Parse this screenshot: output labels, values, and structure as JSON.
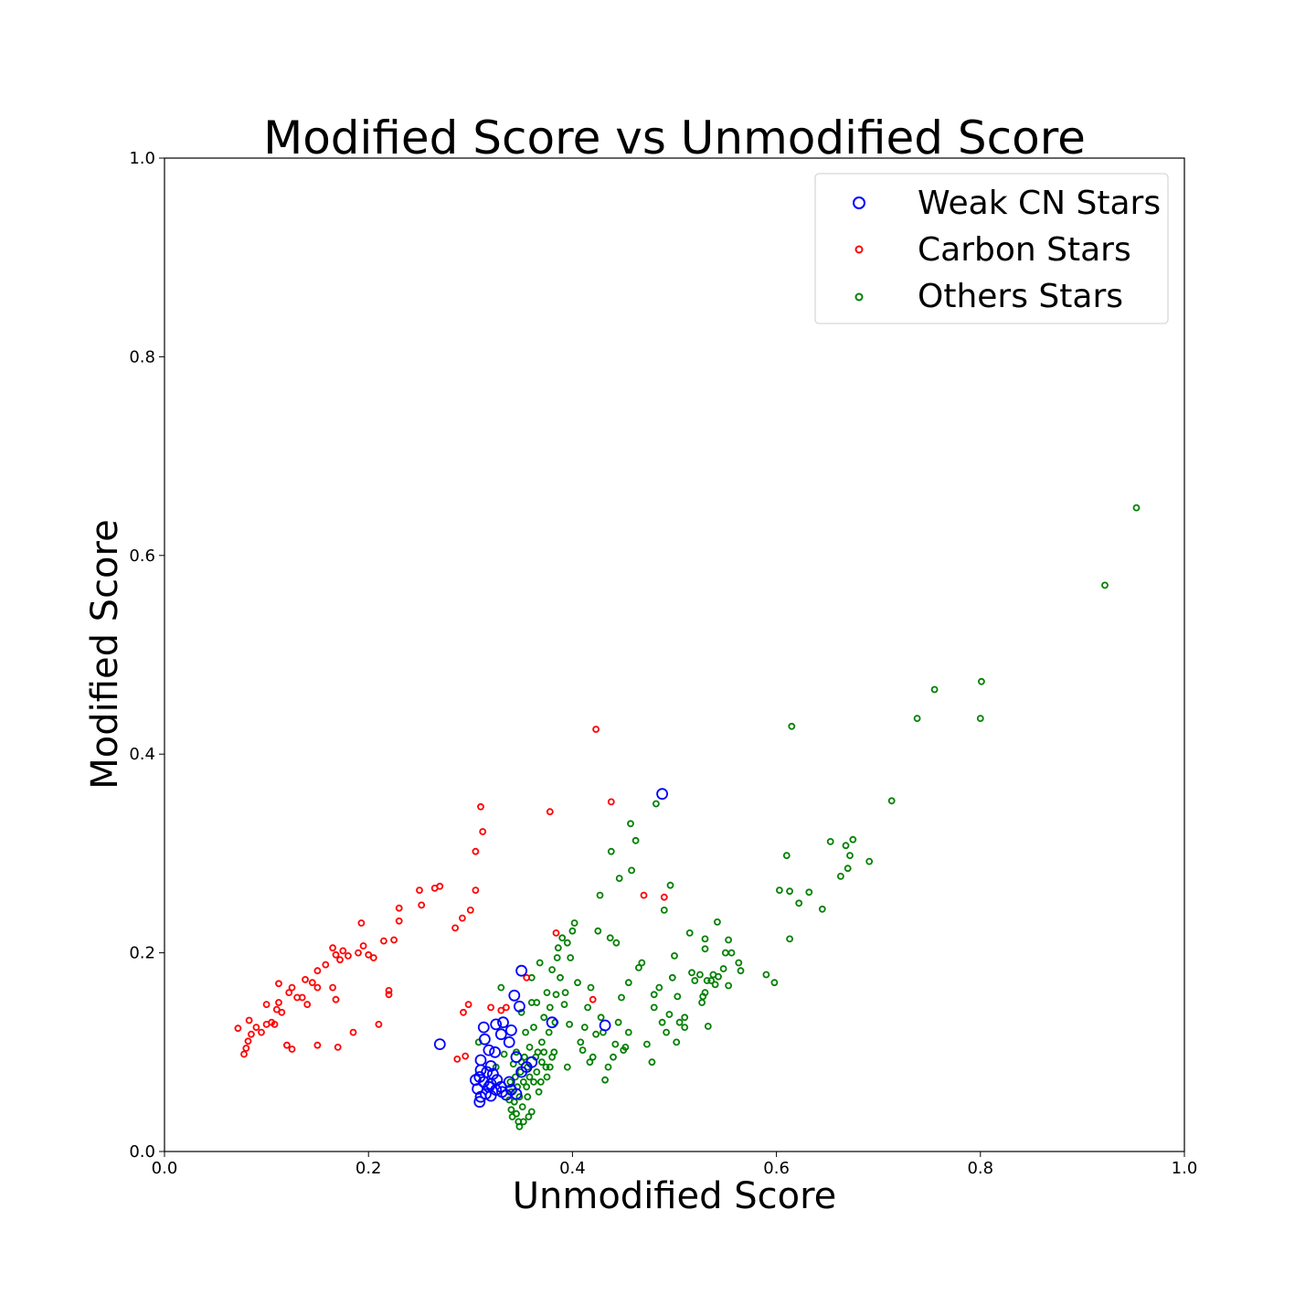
{
  "chart_data": {
    "type": "scatter",
    "title": "Modified Score vs Unmodified Score",
    "xlabel": "Unmodified Score",
    "ylabel": "Modified Score",
    "xlim": [
      0.0,
      1.0
    ],
    "ylim": [
      0.0,
      1.0
    ],
    "xticks": [
      "0.0",
      "0.2",
      "0.4",
      "0.6",
      "0.8",
      "1.0"
    ],
    "yticks": [
      "0.0",
      "0.2",
      "0.4",
      "0.6",
      "0.8",
      "1.0"
    ],
    "grid": false,
    "legend_position": "top-right",
    "series": [
      {
        "name": "Weak CN Stars",
        "color": "#0000ff",
        "marker": "open-circle-large",
        "points": [
          [
            0.27,
            0.108
          ],
          [
            0.35,
            0.182
          ],
          [
            0.343,
            0.157
          ],
          [
            0.348,
            0.146
          ],
          [
            0.332,
            0.13
          ],
          [
            0.325,
            0.128
          ],
          [
            0.313,
            0.125
          ],
          [
            0.314,
            0.113
          ],
          [
            0.33,
            0.118
          ],
          [
            0.34,
            0.122
          ],
          [
            0.338,
            0.11
          ],
          [
            0.318,
            0.102
          ],
          [
            0.324,
            0.1
          ],
          [
            0.345,
            0.095
          ],
          [
            0.31,
            0.092
          ],
          [
            0.32,
            0.086
          ],
          [
            0.31,
            0.082
          ],
          [
            0.316,
            0.08
          ],
          [
            0.322,
            0.078
          ],
          [
            0.309,
            0.075
          ],
          [
            0.305,
            0.072
          ],
          [
            0.313,
            0.07
          ],
          [
            0.32,
            0.068
          ],
          [
            0.318,
            0.065
          ],
          [
            0.307,
            0.063
          ],
          [
            0.325,
            0.062
          ],
          [
            0.331,
            0.06
          ],
          [
            0.315,
            0.058
          ],
          [
            0.32,
            0.056
          ],
          [
            0.31,
            0.055
          ],
          [
            0.309,
            0.05
          ],
          [
            0.335,
            0.057
          ],
          [
            0.34,
            0.062
          ],
          [
            0.345,
            0.058
          ],
          [
            0.33,
            0.065
          ],
          [
            0.338,
            0.07
          ],
          [
            0.326,
            0.072
          ],
          [
            0.35,
            0.08
          ],
          [
            0.355,
            0.085
          ],
          [
            0.36,
            0.09
          ],
          [
            0.38,
            0.13
          ],
          [
            0.432,
            0.127
          ],
          [
            0.488,
            0.36
          ]
        ]
      },
      {
        "name": "Carbon Stars",
        "color": "#ff0000",
        "marker": "open-circle-small",
        "points": [
          [
            0.072,
            0.124
          ],
          [
            0.078,
            0.098
          ],
          [
            0.08,
            0.104
          ],
          [
            0.082,
            0.111
          ],
          [
            0.085,
            0.118
          ],
          [
            0.083,
            0.132
          ],
          [
            0.09,
            0.125
          ],
          [
            0.095,
            0.12
          ],
          [
            0.1,
            0.128
          ],
          [
            0.1,
            0.148
          ],
          [
            0.105,
            0.13
          ],
          [
            0.108,
            0.128
          ],
          [
            0.11,
            0.143
          ],
          [
            0.112,
            0.15
          ],
          [
            0.112,
            0.169
          ],
          [
            0.115,
            0.14
          ],
          [
            0.12,
            0.107
          ],
          [
            0.122,
            0.16
          ],
          [
            0.125,
            0.165
          ],
          [
            0.125,
            0.103
          ],
          [
            0.13,
            0.155
          ],
          [
            0.135,
            0.155
          ],
          [
            0.138,
            0.173
          ],
          [
            0.14,
            0.148
          ],
          [
            0.145,
            0.17
          ],
          [
            0.15,
            0.182
          ],
          [
            0.15,
            0.165
          ],
          [
            0.15,
            0.107
          ],
          [
            0.158,
            0.188
          ],
          [
            0.165,
            0.165
          ],
          [
            0.165,
            0.205
          ],
          [
            0.168,
            0.198
          ],
          [
            0.168,
            0.153
          ],
          [
            0.17,
            0.105
          ],
          [
            0.172,
            0.193
          ],
          [
            0.175,
            0.202
          ],
          [
            0.18,
            0.197
          ],
          [
            0.185,
            0.12
          ],
          [
            0.19,
            0.2
          ],
          [
            0.193,
            0.23
          ],
          [
            0.195,
            0.207
          ],
          [
            0.2,
            0.198
          ],
          [
            0.205,
            0.195
          ],
          [
            0.21,
            0.128
          ],
          [
            0.215,
            0.212
          ],
          [
            0.22,
            0.162
          ],
          [
            0.22,
            0.158
          ],
          [
            0.225,
            0.213
          ],
          [
            0.23,
            0.232
          ],
          [
            0.23,
            0.245
          ],
          [
            0.25,
            0.263
          ],
          [
            0.252,
            0.248
          ],
          [
            0.265,
            0.265
          ],
          [
            0.27,
            0.267
          ],
          [
            0.285,
            0.225
          ],
          [
            0.287,
            0.093
          ],
          [
            0.292,
            0.235
          ],
          [
            0.293,
            0.14
          ],
          [
            0.295,
            0.096
          ],
          [
            0.298,
            0.148
          ],
          [
            0.3,
            0.243
          ],
          [
            0.305,
            0.263
          ],
          [
            0.305,
            0.302
          ],
          [
            0.312,
            0.322
          ],
          [
            0.31,
            0.347
          ],
          [
            0.32,
            0.145
          ],
          [
            0.33,
            0.142
          ],
          [
            0.335,
            0.145
          ],
          [
            0.355,
            0.175
          ],
          [
            0.378,
            0.342
          ],
          [
            0.384,
            0.22
          ],
          [
            0.42,
            0.153
          ],
          [
            0.423,
            0.425
          ],
          [
            0.438,
            0.352
          ],
          [
            0.47,
            0.258
          ],
          [
            0.49,
            0.256
          ]
        ]
      },
      {
        "name": "Others Stars",
        "color": "#008000",
        "marker": "open-circle-small",
        "points": [
          [
            0.953,
            0.648
          ],
          [
            0.922,
            0.57
          ],
          [
            0.801,
            0.473
          ],
          [
            0.8,
            0.436
          ],
          [
            0.755,
            0.465
          ],
          [
            0.738,
            0.436
          ],
          [
            0.713,
            0.353
          ],
          [
            0.615,
            0.428
          ],
          [
            0.691,
            0.292
          ],
          [
            0.675,
            0.314
          ],
          [
            0.672,
            0.298
          ],
          [
            0.668,
            0.308
          ],
          [
            0.67,
            0.285
          ],
          [
            0.663,
            0.277
          ],
          [
            0.653,
            0.312
          ],
          [
            0.645,
            0.244
          ],
          [
            0.632,
            0.261
          ],
          [
            0.622,
            0.25
          ],
          [
            0.613,
            0.262
          ],
          [
            0.613,
            0.214
          ],
          [
            0.61,
            0.298
          ],
          [
            0.603,
            0.263
          ],
          [
            0.598,
            0.17
          ],
          [
            0.59,
            0.178
          ],
          [
            0.565,
            0.182
          ],
          [
            0.563,
            0.19
          ],
          [
            0.553,
            0.167
          ],
          [
            0.556,
            0.2
          ],
          [
            0.553,
            0.213
          ],
          [
            0.55,
            0.2
          ],
          [
            0.548,
            0.184
          ],
          [
            0.543,
            0.176
          ],
          [
            0.542,
            0.231
          ],
          [
            0.54,
            0.168
          ],
          [
            0.538,
            0.178
          ],
          [
            0.536,
            0.172
          ],
          [
            0.533,
            0.126
          ],
          [
            0.532,
            0.172
          ],
          [
            0.53,
            0.16
          ],
          [
            0.53,
            0.214
          ],
          [
            0.53,
            0.204
          ],
          [
            0.528,
            0.156
          ],
          [
            0.527,
            0.15
          ],
          [
            0.525,
            0.178
          ],
          [
            0.52,
            0.172
          ],
          [
            0.517,
            0.18
          ],
          [
            0.515,
            0.22
          ],
          [
            0.51,
            0.135
          ],
          [
            0.51,
            0.125
          ],
          [
            0.505,
            0.13
          ],
          [
            0.503,
            0.156
          ],
          [
            0.502,
            0.11
          ],
          [
            0.5,
            0.197
          ],
          [
            0.498,
            0.175
          ],
          [
            0.496,
            0.268
          ],
          [
            0.495,
            0.138
          ],
          [
            0.492,
            0.12
          ],
          [
            0.49,
            0.243
          ],
          [
            0.488,
            0.13
          ],
          [
            0.485,
            0.165
          ],
          [
            0.48,
            0.158
          ],
          [
            0.482,
            0.35
          ],
          [
            0.48,
            0.145
          ],
          [
            0.478,
            0.09
          ],
          [
            0.473,
            0.108
          ],
          [
            0.468,
            0.19
          ],
          [
            0.465,
            0.185
          ],
          [
            0.462,
            0.313
          ],
          [
            0.458,
            0.283
          ],
          [
            0.457,
            0.33
          ],
          [
            0.455,
            0.17
          ],
          [
            0.455,
            0.12
          ],
          [
            0.452,
            0.105
          ],
          [
            0.45,
            0.102
          ],
          [
            0.448,
            0.155
          ],
          [
            0.446,
            0.275
          ],
          [
            0.445,
            0.13
          ],
          [
            0.443,
            0.21
          ],
          [
            0.442,
            0.108
          ],
          [
            0.44,
            0.095
          ],
          [
            0.438,
            0.302
          ],
          [
            0.437,
            0.215
          ],
          [
            0.435,
            0.085
          ],
          [
            0.432,
            0.072
          ],
          [
            0.43,
            0.12
          ],
          [
            0.428,
            0.135
          ],
          [
            0.427,
            0.258
          ],
          [
            0.425,
            0.222
          ],
          [
            0.423,
            0.118
          ],
          [
            0.42,
            0.095
          ],
          [
            0.418,
            0.165
          ],
          [
            0.417,
            0.09
          ],
          [
            0.415,
            0.145
          ],
          [
            0.412,
            0.125
          ],
          [
            0.41,
            0.102
          ],
          [
            0.408,
            0.11
          ],
          [
            0.405,
            0.17
          ],
          [
            0.402,
            0.23
          ],
          [
            0.4,
            0.222
          ],
          [
            0.398,
            0.195
          ],
          [
            0.397,
            0.128
          ],
          [
            0.395,
            0.21
          ],
          [
            0.393,
            0.16
          ],
          [
            0.392,
            0.148
          ],
          [
            0.39,
            0.215
          ],
          [
            0.388,
            0.175
          ],
          [
            0.386,
            0.205
          ],
          [
            0.385,
            0.195
          ],
          [
            0.384,
            0.158
          ],
          [
            0.383,
            0.13
          ],
          [
            0.382,
            0.1
          ],
          [
            0.38,
            0.183
          ],
          [
            0.38,
            0.095
          ],
          [
            0.378,
            0.145
          ],
          [
            0.377,
            0.12
          ],
          [
            0.375,
            0.16
          ],
          [
            0.374,
            0.085
          ],
          [
            0.372,
            0.135
          ],
          [
            0.37,
            0.11
          ],
          [
            0.369,
            0.07
          ],
          [
            0.368,
            0.19
          ],
          [
            0.367,
            0.06
          ],
          [
            0.365,
            0.15
          ],
          [
            0.364,
            0.095
          ],
          [
            0.362,
            0.125
          ],
          [
            0.36,
            0.04
          ],
          [
            0.36,
            0.15
          ],
          [
            0.358,
            0.105
          ],
          [
            0.357,
            0.035
          ],
          [
            0.356,
            0.085
          ],
          [
            0.355,
            0.065
          ],
          [
            0.354,
            0.12
          ],
          [
            0.353,
            0.095
          ],
          [
            0.352,
            0.07
          ],
          [
            0.351,
            0.045
          ],
          [
            0.35,
            0.14
          ],
          [
            0.35,
            0.09
          ],
          [
            0.349,
            0.08
          ],
          [
            0.348,
            0.055
          ],
          [
            0.347,
            0.03
          ],
          [
            0.346,
            0.065
          ],
          [
            0.345,
            0.1
          ],
          [
            0.345,
            0.038
          ],
          [
            0.344,
            0.075
          ],
          [
            0.343,
            0.05
          ],
          [
            0.342,
            0.088
          ],
          [
            0.341,
            0.035
          ],
          [
            0.34,
            0.06
          ],
          [
            0.34,
            0.042
          ],
          [
            0.339,
            0.07
          ],
          [
            0.338,
            0.052
          ],
          [
            0.348,
            0.025
          ],
          [
            0.352,
            0.03
          ],
          [
            0.356,
            0.055
          ],
          [
            0.358,
            0.075
          ],
          [
            0.362,
            0.07
          ],
          [
            0.365,
            0.08
          ],
          [
            0.366,
            0.1
          ],
          [
            0.37,
            0.09
          ],
          [
            0.372,
            0.1
          ],
          [
            0.375,
            0.075
          ],
          [
            0.378,
            0.085
          ],
          [
            0.33,
            0.165
          ],
          [
            0.333,
            0.098
          ],
          [
            0.325,
            0.085
          ],
          [
            0.308,
            0.11
          ],
          [
            0.36,
            0.175
          ],
          [
            0.395,
            0.085
          ]
        ]
      }
    ]
  }
}
